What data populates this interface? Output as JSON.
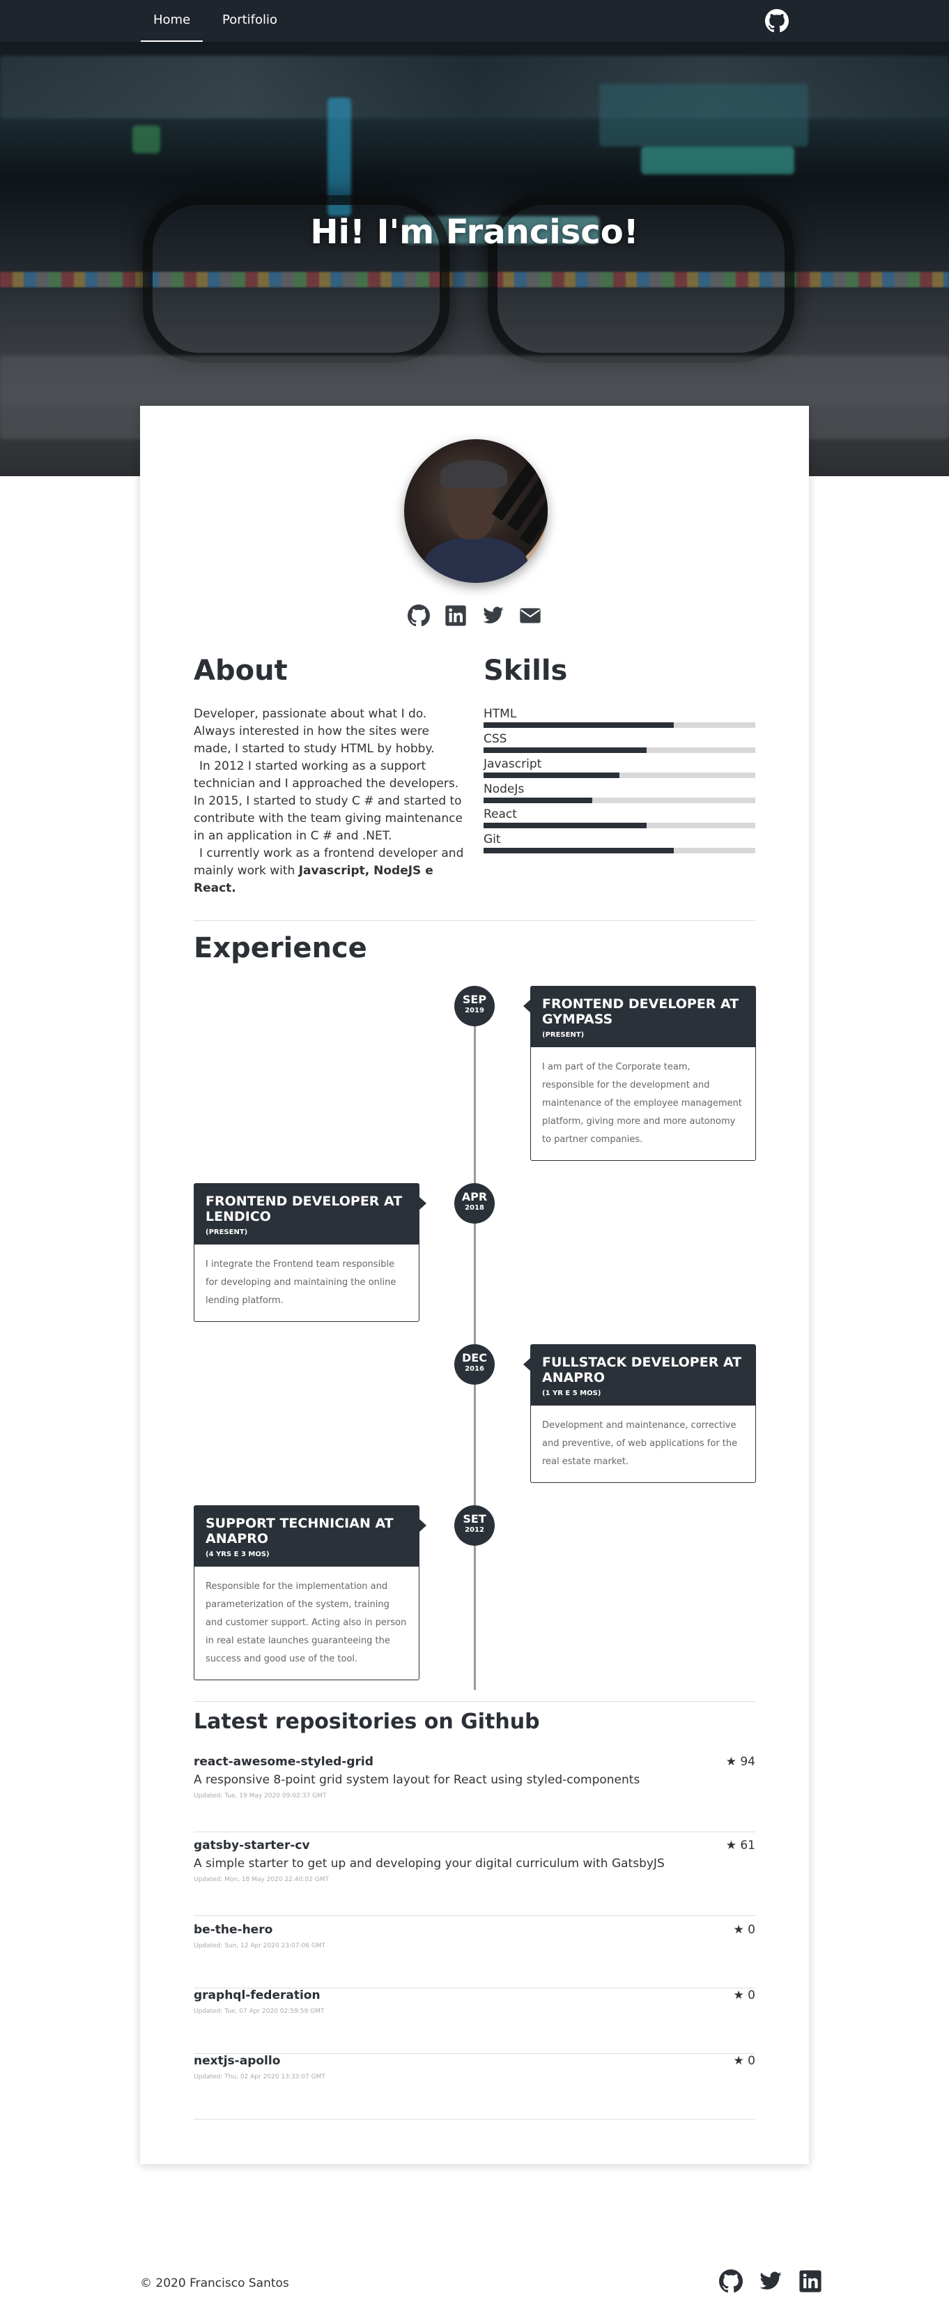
{
  "nav": {
    "items": [
      {
        "label": "Home",
        "active": true
      },
      {
        "label": "Portifolio",
        "active": false
      }
    ],
    "icon": "github-icon"
  },
  "hero": {
    "title": "Hi! I'm Francisco!"
  },
  "profile": {
    "social_icons": [
      "github-icon",
      "linkedin-icon",
      "twitter-icon",
      "email-icon"
    ]
  },
  "about": {
    "heading": "About",
    "p1": "Developer, passionate about what I do. Always interested in how the sites were made, I started to study HTML by hobby.",
    "p2": "In 2012 I started working as a support technician and I approached the developers. In 2015, I started to study C # and started to contribute with the team giving maintenance in an application in C # and .NET.",
    "p3_prefix": "I currently work as a frontend developer and mainly work with ",
    "p3_bold": "Javascript, NodeJS e React."
  },
  "skills": {
    "heading": "Skills",
    "items": [
      {
        "name": "HTML",
        "level": 0.7
      },
      {
        "name": "CSS",
        "level": 0.6
      },
      {
        "name": "Javascript",
        "level": 0.5
      },
      {
        "name": "NodeJs",
        "level": 0.4
      },
      {
        "name": "React",
        "level": 0.6
      },
      {
        "name": "Git",
        "level": 0.7
      }
    ]
  },
  "experience": {
    "heading": "Experience",
    "items": [
      {
        "month": "SEP",
        "year": "2019",
        "title": "FRONTEND DEVELOPER AT GYMPASS",
        "duration": "(PRESENT)",
        "description": "I am part of the Corporate team, responsible for the development and maintenance of the employee management platform, giving more and more autonomy to partner companies."
      },
      {
        "month": "APR",
        "year": "2018",
        "title": "FRONTEND DEVELOPER AT LENDICO",
        "duration": "(PRESENT)",
        "description": "I integrate the Frontend team responsible for developing and maintaining the online lending platform."
      },
      {
        "month": "DEC",
        "year": "2016",
        "title": "FULLSTACK DEVELOPER AT ANAPRO",
        "duration": "(1 YR E 5 MOS)",
        "description": "Development and maintenance, corrective and preventive, of web applications for the real estate market."
      },
      {
        "month": "SET",
        "year": "2012",
        "title": "SUPPORT TECHNICIAN AT ANAPRO",
        "duration": "(4 YRS E 3 MOS)",
        "description": "Responsible for the implementation and parameterization of the system, training and customer support. Acting also in person in real estate launches guaranteeing the success and good use of the tool."
      }
    ]
  },
  "repos": {
    "heading": "Latest repositories on Github",
    "items": [
      {
        "name": "react-awesome-styled-grid",
        "description": "A responsive 8-point grid system layout for React using styled-components",
        "updated": "Updated: Tue, 19 May 2020 09:02:37 GMT",
        "stars": "★ 94"
      },
      {
        "name": "gatsby-starter-cv",
        "description": "A simple starter to get up and developing your digital curriculum with GatsbyJS",
        "updated": "Updated: Mon, 18 May 2020 22:40:02 GMT",
        "stars": "★ 61"
      },
      {
        "name": "be-the-hero",
        "description": "",
        "updated": "Updated: Sun, 12 Apr 2020 23:07:06 GMT",
        "stars": "★ 0"
      },
      {
        "name": "graphql-federation",
        "description": "",
        "updated": "Updated: Tue, 07 Apr 2020 02:59:59 GMT",
        "stars": "★ 0"
      },
      {
        "name": "nextjs-apollo",
        "description": "",
        "updated": "Updated: Thu, 02 Apr 2020 13:33:07 GMT",
        "stars": "★ 0"
      }
    ]
  },
  "footer": {
    "copyright": "© 2020 Francisco Santos",
    "icons": [
      "github-icon",
      "twitter-icon",
      "linkedin-icon"
    ]
  }
}
